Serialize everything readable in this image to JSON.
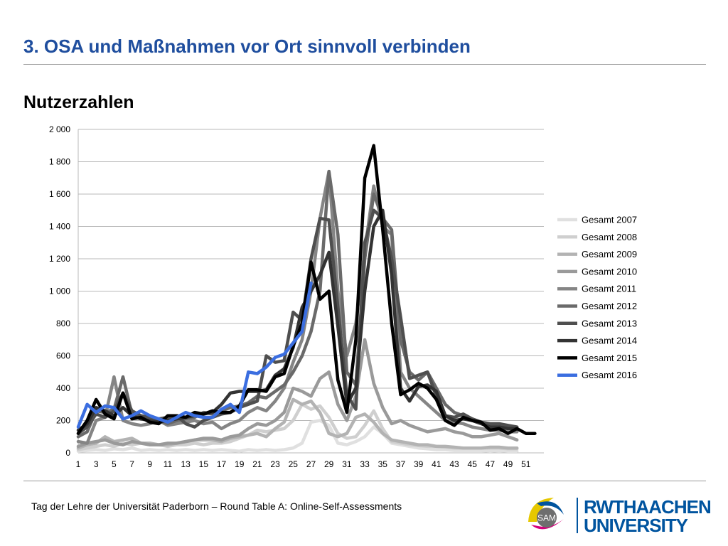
{
  "slide": {
    "title": "3. OSA und Maßnahmen vor Ort sinnvoll verbinden",
    "subtitle": "Nutzerzahlen",
    "footer": "Tag der Lehre der Universität Paderborn – Round Table A: Online-Self-Assessments",
    "logo_sam": "SAM",
    "logo_rwth_line1": "RWTHAACHEN",
    "logo_rwth_line2": "UNIVERSITY"
  },
  "chart_data": {
    "type": "line",
    "title": "",
    "xlabel": "",
    "ylabel": "",
    "ylim": [
      0,
      2000
    ],
    "yticks": [
      0,
      200,
      400,
      600,
      800,
      1000,
      1200,
      1400,
      1600,
      1800,
      2000
    ],
    "ytick_labels": [
      "0",
      "200",
      "400",
      "600",
      "800",
      "1 000",
      "1 200",
      "1 400",
      "1 600",
      "1 800",
      "2 000"
    ],
    "xlim": [
      1,
      53
    ],
    "xtick_labels": [
      "1",
      "3",
      "5",
      "7",
      "9",
      "11",
      "13",
      "15",
      "17",
      "19",
      "21",
      "23",
      "25",
      "27",
      "29",
      "31",
      "33",
      "35",
      "37",
      "39",
      "41",
      "43",
      "45",
      "47",
      "49",
      "51"
    ],
    "grid": true,
    "legend": "right",
    "series": [
      {
        "name": "Gesamt 2007",
        "color": "#e0e0e0",
        "values": [
          10,
          15,
          20,
          15,
          25,
          20,
          30,
          15,
          20,
          15,
          20,
          15,
          20,
          15,
          20,
          15,
          20,
          15,
          10,
          20,
          15,
          20,
          15,
          20,
          30,
          60,
          190,
          200,
          170,
          60,
          50,
          70,
          100,
          160,
          120,
          60,
          50,
          40,
          30,
          25,
          20,
          20,
          15,
          15,
          15,
          15,
          10,
          15,
          10,
          10
        ]
      },
      {
        "name": "Gesamt 2008",
        "color": "#cfcfcf",
        "values": [
          20,
          30,
          40,
          50,
          40,
          60,
          50,
          60,
          50,
          50,
          40,
          50,
          50,
          60,
          50,
          60,
          60,
          70,
          90,
          110,
          140,
          130,
          140,
          150,
          200,
          300,
          270,
          290,
          220,
          120,
          90,
          100,
          170,
          260,
          150,
          70,
          60,
          50,
          45,
          40,
          40,
          35,
          30,
          30,
          30,
          30,
          30,
          30,
          25,
          25
        ]
      },
      {
        "name": "Gesamt 2009",
        "color": "#b3b3b3",
        "values": [
          30,
          50,
          60,
          100,
          70,
          80,
          90,
          60,
          60,
          50,
          50,
          60,
          70,
          80,
          80,
          80,
          70,
          90,
          100,
          110,
          120,
          100,
          150,
          190,
          330,
          300,
          320,
          250,
          120,
          100,
          120,
          220,
          240,
          190,
          120,
          80,
          70,
          60,
          50,
          50,
          40,
          40,
          35,
          30,
          30,
          30,
          35,
          35,
          30,
          30
        ]
      },
      {
        "name": "Gesamt 2010",
        "color": "#9a9a9a",
        "values": [
          40,
          60,
          70,
          80,
          60,
          50,
          70,
          60,
          50,
          50,
          60,
          60,
          70,
          80,
          90,
          90,
          80,
          100,
          110,
          150,
          180,
          170,
          200,
          250,
          400,
          380,
          350,
          460,
          500,
          300,
          200,
          350,
          700,
          430,
          280,
          180,
          200,
          170,
          150,
          130,
          140,
          150,
          130,
          120,
          100,
          100,
          110,
          120,
          100,
          80
        ]
      },
      {
        "name": "Gesamt 2011",
        "color": "#858585",
        "values": [
          70,
          60,
          200,
          220,
          470,
          200,
          180,
          170,
          180,
          200,
          170,
          180,
          190,
          200,
          180,
          190,
          150,
          180,
          200,
          250,
          280,
          260,
          320,
          400,
          560,
          700,
          1000,
          1450,
          1740,
          1000,
          600,
          800,
          1250,
          1650,
          1400,
          1350,
          500,
          400,
          350,
          300,
          250,
          200,
          190,
          180,
          160,
          150,
          140,
          140,
          130,
          130
        ]
      },
      {
        "name": "Gesamt 2012",
        "color": "#6a6a6a",
        "values": [
          100,
          130,
          260,
          250,
          270,
          470,
          240,
          220,
          230,
          200,
          180,
          200,
          210,
          220,
          250,
          240,
          260,
          280,
          290,
          310,
          350,
          340,
          380,
          420,
          500,
          600,
          750,
          1000,
          1740,
          1350,
          500,
          420,
          1200,
          1600,
          1450,
          1380,
          700,
          500,
          450,
          500,
          400,
          300,
          250,
          230,
          210,
          190,
          170,
          170,
          160,
          150
        ]
      },
      {
        "name": "Gesamt 2013",
        "color": "#4f4f4f",
        "values": [
          120,
          160,
          240,
          220,
          260,
          370,
          260,
          230,
          220,
          210,
          220,
          230,
          180,
          160,
          200,
          220,
          240,
          250,
          280,
          300,
          320,
          600,
          560,
          570,
          870,
          820,
          1200,
          1450,
          1440,
          900,
          360,
          270,
          1300,
          1500,
          1450,
          1200,
          840,
          460,
          480,
          500,
          350,
          230,
          220,
          240,
          210,
          190,
          180,
          180,
          170,
          160
        ]
      },
      {
        "name": "Gesamt 2014",
        "color": "#333333",
        "values": [
          140,
          180,
          280,
          260,
          230,
          280,
          230,
          210,
          200,
          190,
          200,
          210,
          220,
          230,
          240,
          250,
          300,
          370,
          380,
          380,
          380,
          390,
          480,
          520,
          650,
          900,
          1000,
          1100,
          1240,
          780,
          300,
          400,
          1000,
          1400,
          1500,
          1100,
          400,
          320,
          410,
          420,
          380,
          230,
          200,
          210,
          200,
          180,
          160,
          160,
          150,
          150
        ]
      },
      {
        "name": "Gesamt 2015",
        "color": "#000000",
        "values": [
          120,
          200,
          330,
          240,
          210,
          370,
          210,
          220,
          190,
          180,
          230,
          230,
          220,
          250,
          240,
          260,
          250,
          250,
          290,
          390,
          390,
          380,
          470,
          490,
          660,
          800,
          1180,
          950,
          1000,
          450,
          250,
          700,
          1700,
          1900,
          1380,
          800,
          360,
          390,
          430,
          400,
          330,
          200,
          170,
          220,
          200,
          190,
          140,
          150,
          120,
          150,
          120,
          120
        ]
      },
      {
        "name": "Gesamt 2016",
        "color": "#3b6ee0",
        "values": [
          160,
          300,
          250,
          290,
          280,
          210,
          230,
          260,
          230,
          210,
          190,
          220,
          250,
          230,
          220,
          220,
          270,
          300,
          250,
          500,
          490,
          530,
          590,
          610,
          680,
          750,
          1050
        ]
      }
    ]
  }
}
